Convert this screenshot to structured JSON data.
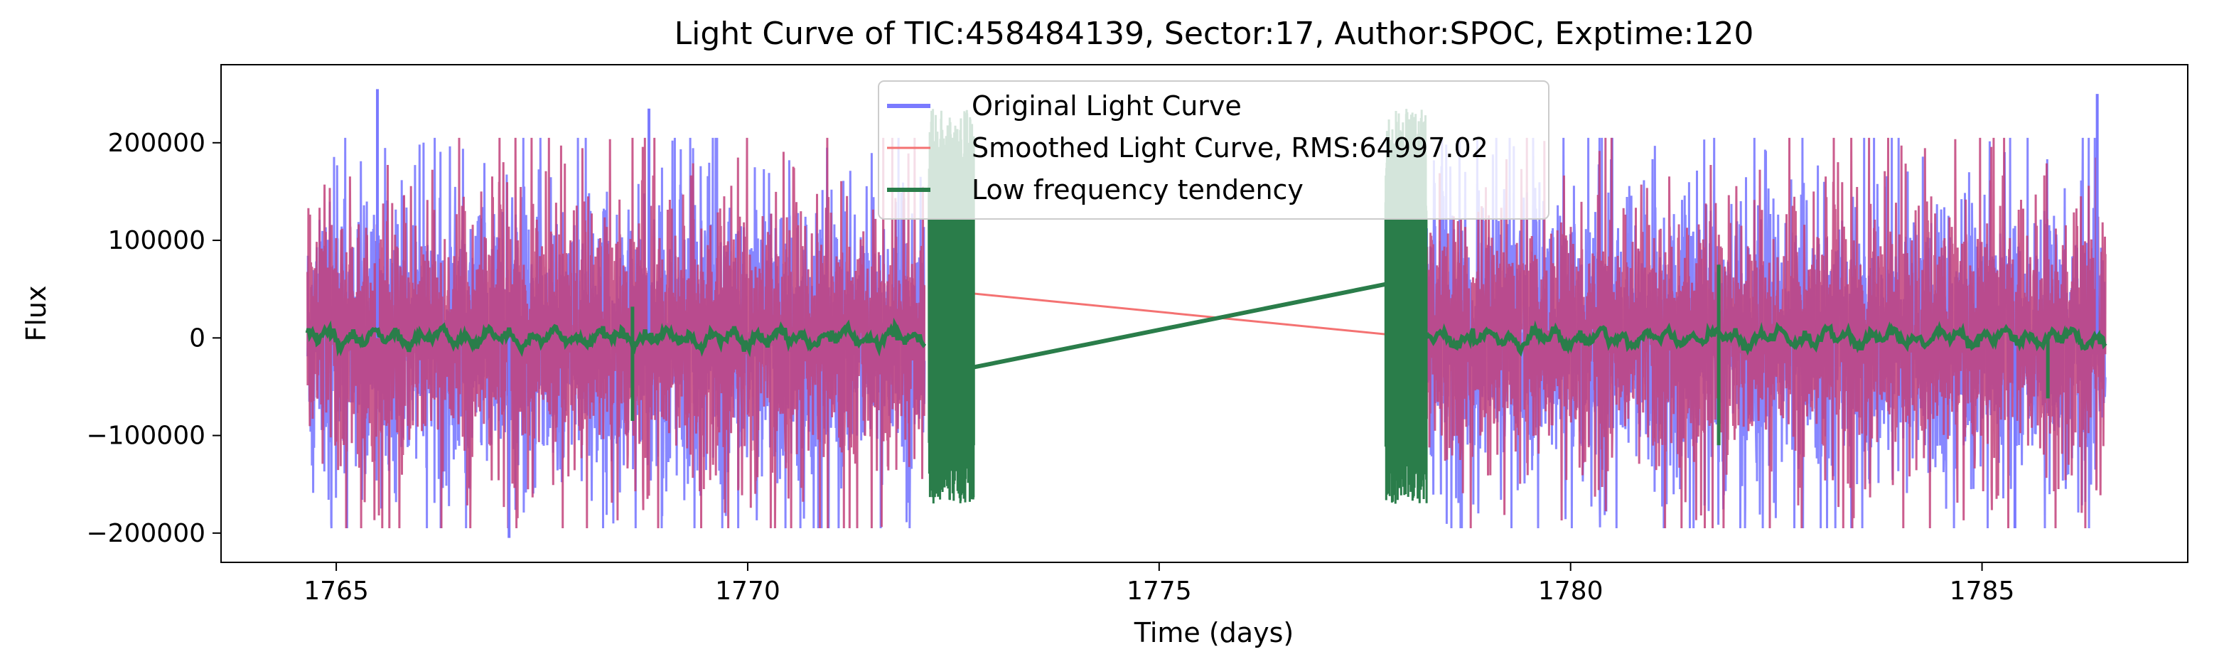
{
  "chart_data": {
    "type": "line",
    "title": "Light Curve of TIC:458484139, Sector:17, Author:SPOC, Exptime:120",
    "xlabel": "Time (days)",
    "ylabel": "Flux",
    "xlim": [
      1763.6,
      1787.5
    ],
    "ylim": [
      -230000,
      280000
    ],
    "xticks": [
      1765,
      1770,
      1775,
      1780,
      1785
    ],
    "xtick_labels": [
      "1765",
      "1770",
      "1775",
      "1780",
      "1785"
    ],
    "yticks": [
      200000,
      100000,
      0,
      -100000,
      -200000
    ],
    "ytick_labels": [
      "200000",
      "100000",
      "0",
      "−100000",
      "−200000"
    ],
    "grid": false,
    "legend_position": "top-center",
    "data_ranges": {
      "segment_1": [
        1764.65,
        1772.15
      ],
      "segment_2": [
        1778.25,
        1786.5
      ],
      "low_freq_dense_1": [
        1772.2,
        1772.75
      ],
      "low_freq_dense_2": [
        1777.75,
        1778.25
      ]
    },
    "series": [
      {
        "name": "Original Light Curve",
        "color": "#7a7aff",
        "description_points": {
          "envelope_upper": 210000,
          "envelope_lower": -190000,
          "extreme_peaks": [
            {
              "x": 1765.5,
              "y": 255000
            },
            {
              "x": 1767.1,
              "y": -205000
            },
            {
              "x": 1768.8,
              "y": 235000
            },
            {
              "x": 1786.4,
              "y": 250000
            },
            {
              "x": 1785.4,
              "y": -195000
            }
          ]
        }
      },
      {
        "name": "Smoothed Light Curve, RMS:64997.02",
        "color": "#f47272",
        "gap_bridge": [
          {
            "x": 1772.2,
            "y": 50000
          },
          {
            "x": 1778.2,
            "y": 0
          }
        ]
      },
      {
        "name": "Low frequency tendency",
        "color": "#2a7d4a",
        "gap_bridge": [
          {
            "x": 1772.75,
            "y": -30000
          },
          {
            "x": 1777.75,
            "y": 55000
          }
        ],
        "spikes": [
          {
            "x": 1768.6,
            "y_top": 32000,
            "y_bottom": -85000
          },
          {
            "x": 1781.8,
            "y_top": 75000,
            "y_bottom": -110000
          },
          {
            "x": 1785.8,
            "y_top": 0,
            "y_bottom": -62000
          }
        ],
        "dense_band": {
          "upper": 235000,
          "lower": -170000
        }
      }
    ],
    "colors": {
      "original": "#7a7aff",
      "smoothed": "#f47272",
      "blend": "#c2417a",
      "lowfreq": "#2a7d4a"
    }
  }
}
